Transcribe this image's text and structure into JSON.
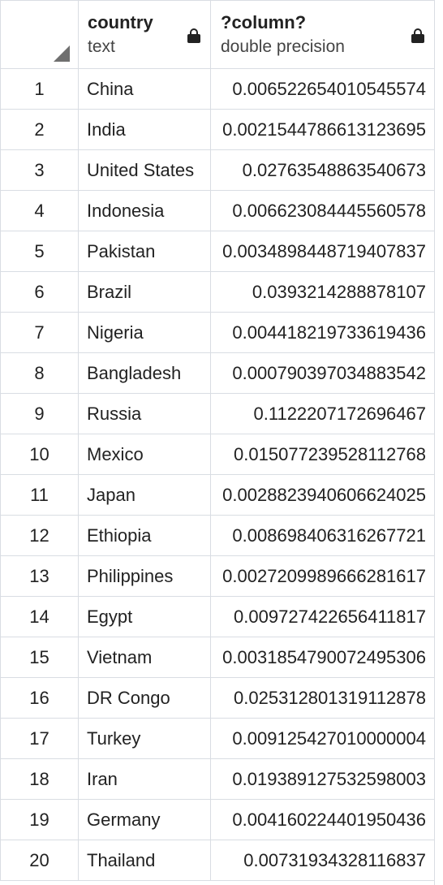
{
  "columns": [
    {
      "name": "country",
      "type": "text",
      "icon": "lock-icon"
    },
    {
      "name": "?column?",
      "type": "double precision",
      "icon": "lock-icon"
    }
  ],
  "rows": [
    {
      "n": "1",
      "country": "China",
      "value": "0.006522654010545574"
    },
    {
      "n": "2",
      "country": "India",
      "value": "0.0021544786613123695"
    },
    {
      "n": "3",
      "country": "United States",
      "value": "0.02763548863540673"
    },
    {
      "n": "4",
      "country": "Indonesia",
      "value": "0.006623084445560578"
    },
    {
      "n": "5",
      "country": "Pakistan",
      "value": "0.0034898448719407837"
    },
    {
      "n": "6",
      "country": "Brazil",
      "value": "0.0393214288878107"
    },
    {
      "n": "7",
      "country": "Nigeria",
      "value": "0.004418219733619436"
    },
    {
      "n": "8",
      "country": "Bangladesh",
      "value": "0.000790397034883542"
    },
    {
      "n": "9",
      "country": "Russia",
      "value": "0.1122207172696467"
    },
    {
      "n": "10",
      "country": "Mexico",
      "value": "0.015077239528112768"
    },
    {
      "n": "11",
      "country": "Japan",
      "value": "0.0028823940606624025"
    },
    {
      "n": "12",
      "country": "Ethiopia",
      "value": "0.008698406316267721"
    },
    {
      "n": "13",
      "country": "Philippines",
      "value": "0.0027209989666281617"
    },
    {
      "n": "14",
      "country": "Egypt",
      "value": "0.009727422656411817"
    },
    {
      "n": "15",
      "country": "Vietnam",
      "value": "0.0031854790072495306"
    },
    {
      "n": "16",
      "country": "DR Congo",
      "value": "0.025312801319112878"
    },
    {
      "n": "17",
      "country": "Turkey",
      "value": "0.009125427010000004"
    },
    {
      "n": "18",
      "country": "Iran",
      "value": "0.019389127532598003"
    },
    {
      "n": "19",
      "country": "Germany",
      "value": "0.004160224401950436"
    },
    {
      "n": "20",
      "country": "Thailand",
      "value": "0.00731934328116837"
    }
  ]
}
